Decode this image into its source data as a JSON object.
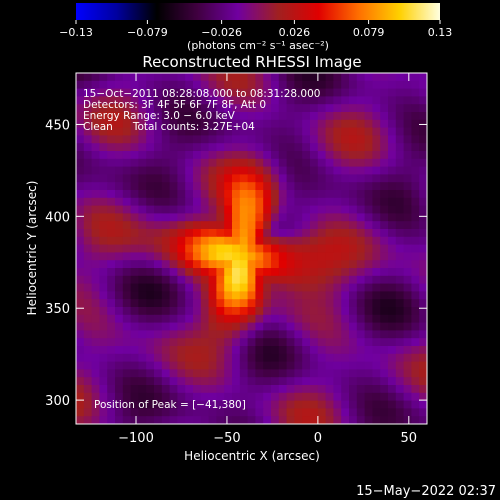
{
  "chart_data": {
    "type": "heatmap",
    "title": "Reconstructed RHESSI Image",
    "xlabel": "Heliocentric X (arcsec)",
    "ylabel": "Heliocentric Y (arcsec)",
    "xlim": [
      -133,
      60
    ],
    "ylim": [
      287,
      478
    ],
    "xticks": [
      -100,
      -50,
      0,
      50
    ],
    "xtick_labels": [
      "−100",
      "−50",
      "0",
      "50"
    ],
    "yticks": [
      300,
      350,
      400,
      450
    ],
    "ytick_labels": [
      "300",
      "350",
      "400",
      "450"
    ],
    "colorbar": {
      "min": -0.13,
      "max": 0.13,
      "ticks": [
        -0.13,
        -0.079,
        -0.026,
        0.026,
        0.079,
        0.13
      ],
      "tick_labels": [
        "−0.13",
        "−0.079",
        "−0.026",
        "0.026",
        "0.079",
        "0.13"
      ],
      "unit_label": "(photons cm⁻² s⁻¹ asec⁻²)",
      "stops": [
        "#0000ff",
        "#0000a0",
        "#000000",
        "#400040",
        "#7000a0",
        "#a02020",
        "#e00000",
        "#ff7000",
        "#ffd000",
        "#ffffe0"
      ]
    },
    "annotations": [
      "15−Oct−2011 08:28:08.000 to 08:31:28.000",
      "Detectors: 3F 4F 5F 6F 7F 8F, Att 0",
      "Energy Range: 3.0 − 6.0 keV",
      "Clean      Total counts: 3.27E+04"
    ],
    "peak_label": "Position of Peak = [−41,380]",
    "source": {
      "x": -41,
      "y": 380,
      "peak": 0.13
    },
    "timestamp": "15−May−2022 02:37"
  }
}
